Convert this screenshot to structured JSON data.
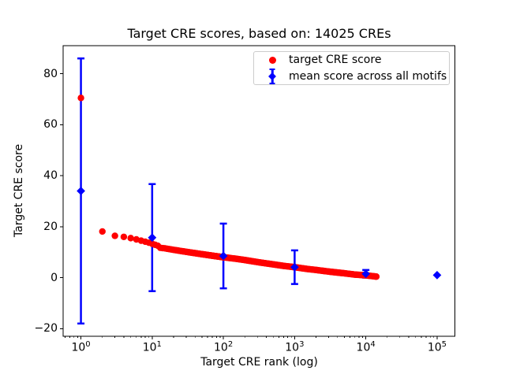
{
  "chart_data": {
    "type": "scatter",
    "title": "Target CRE scores, based on: 14025 CREs",
    "xlabel": "Target CRE rank (log)",
    "ylabel": "Target CRE score",
    "x_scale": "log",
    "xlim_log10": [
      -0.25,
      5.25
    ],
    "ylim": [
      -23,
      91
    ],
    "grid": false,
    "legend_position": "upper right",
    "colors": {
      "target": "#ff0000",
      "mean": "#0000ff",
      "axis": "#000000",
      "legend_border": "#cccccc"
    },
    "xticks": [
      {
        "value": 1,
        "base": "10",
        "exp": "0"
      },
      {
        "value": 10,
        "base": "10",
        "exp": "1"
      },
      {
        "value": 100,
        "base": "10",
        "exp": "2"
      },
      {
        "value": 1000,
        "base": "10",
        "exp": "3"
      },
      {
        "value": 10000,
        "base": "10",
        "exp": "4"
      },
      {
        "value": 100000,
        "base": "10",
        "exp": "5"
      }
    ],
    "yticks": [
      {
        "value": -20,
        "label": "−20"
      },
      {
        "value": 0,
        "label": "0"
      },
      {
        "value": 20,
        "label": "20"
      },
      {
        "value": 40,
        "label": "40"
      },
      {
        "value": 60,
        "label": "60"
      },
      {
        "value": 80,
        "label": "80"
      }
    ],
    "series": [
      {
        "name": "target CRE score",
        "type": "scatter",
        "marker": "circle",
        "color": "#ff0000",
        "n_points": 14025,
        "anchor_points": {
          "rank": [
            1,
            2,
            3,
            4,
            5,
            6,
            7,
            8,
            9,
            10,
            12,
            13,
            15,
            20,
            32,
            50,
            70,
            100,
            150,
            200,
            316,
            500,
            700,
            1000,
            1500,
            2000,
            3162,
            5000,
            7000,
            10000,
            14025
          ],
          "score": [
            70.5,
            18.1,
            16.4,
            16.0,
            15.5,
            15.0,
            14.5,
            14.1,
            13.7,
            13.3,
            12.5,
            11.7,
            11.5,
            10.9,
            10.0,
            9.2,
            8.6,
            8.0,
            7.4,
            6.9,
            6.0,
            5.2,
            4.6,
            4.1,
            3.4,
            3.0,
            2.3,
            1.7,
            1.2,
            0.9,
            0.4
          ]
        }
      },
      {
        "name": "mean score across all motifs",
        "type": "errorbar",
        "marker": "diamond",
        "color": "#0000ff",
        "points": [
          {
            "rank": 1,
            "mean": 34.0,
            "err": 52.0
          },
          {
            "rank": 10,
            "mean": 15.7,
            "err": 21.0
          },
          {
            "rank": 100,
            "mean": 8.5,
            "err": 12.7
          },
          {
            "rank": 1000,
            "mean": 4.1,
            "err": 6.6
          },
          {
            "rank": 10000,
            "mean": 1.5,
            "err": 1.5
          },
          {
            "rank": 100000,
            "mean": 1.0,
            "err": 0
          }
        ]
      }
    ]
  }
}
